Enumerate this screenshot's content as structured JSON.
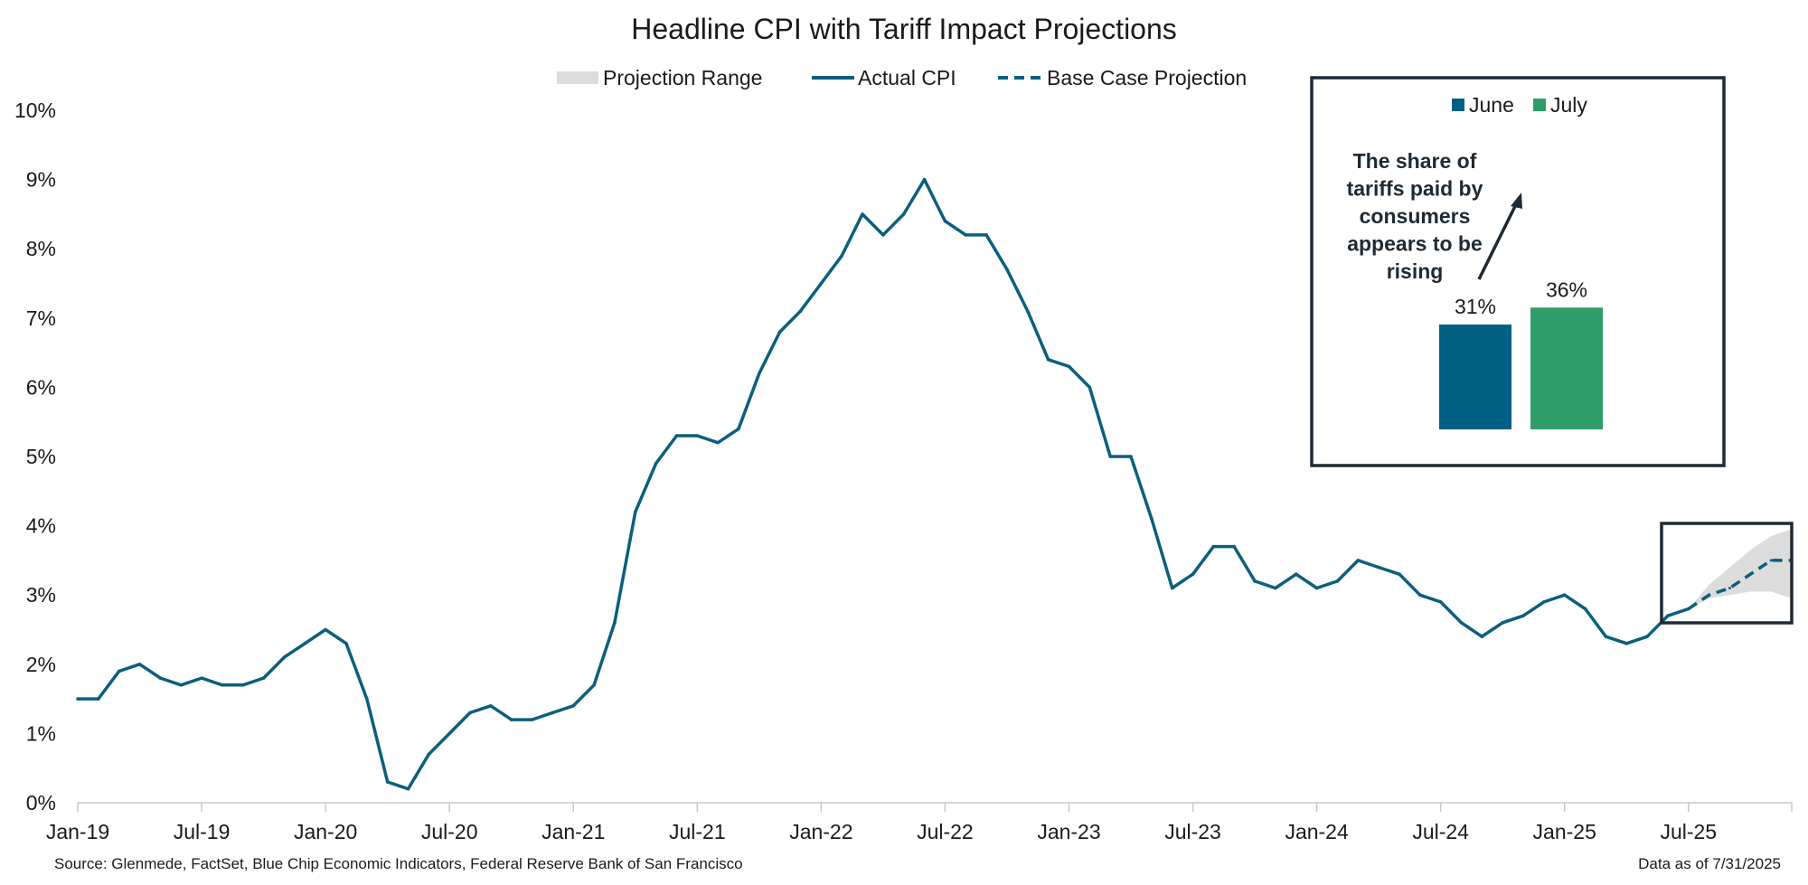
{
  "colors": {
    "actual": "#0B5E7E",
    "june": "#005F83",
    "july": "#2E9D68",
    "band": "#DCDCDC",
    "box": "#1E2A33",
    "axis": "#C8C8C8"
  },
  "footer": {
    "source": "Source: Glenmede, FactSet, Blue Chip Economic Indicators, Federal Reserve Bank of San Francisco",
    "as_of": "Data as of 7/31/2025"
  },
  "chart_data": [
    {
      "type": "line",
      "title": "Headline CPI with Tariff Impact Projections",
      "xlabel": "",
      "ylabel": "",
      "ylim": [
        0,
        10
      ],
      "y_ticks": [
        "0%",
        "1%",
        "2%",
        "3%",
        "4%",
        "5%",
        "6%",
        "7%",
        "8%",
        "9%",
        "10%"
      ],
      "x_ticks": [
        "Jan-19",
        "Jul-19",
        "Jan-20",
        "Jul-20",
        "Jan-21",
        "Jul-21",
        "Jan-22",
        "Jul-22",
        "Jan-23",
        "Jul-23",
        "Jan-24",
        "Jul-24",
        "Jan-25",
        "Jul-25"
      ],
      "x_range": [
        "2019-01",
        "2025-12"
      ],
      "legend": "top-center",
      "grid": false,
      "series": [
        {
          "name": "Actual CPI",
          "style": "solid",
          "x": [
            "2019-01",
            "2019-02",
            "2019-03",
            "2019-04",
            "2019-05",
            "2019-06",
            "2019-07",
            "2019-08",
            "2019-09",
            "2019-10",
            "2019-11",
            "2019-12",
            "2020-01",
            "2020-02",
            "2020-03",
            "2020-04",
            "2020-05",
            "2020-06",
            "2020-07",
            "2020-08",
            "2020-09",
            "2020-10",
            "2020-11",
            "2020-12",
            "2021-01",
            "2021-02",
            "2021-03",
            "2021-04",
            "2021-05",
            "2021-06",
            "2021-07",
            "2021-08",
            "2021-09",
            "2021-10",
            "2021-11",
            "2021-12",
            "2022-01",
            "2022-02",
            "2022-03",
            "2022-04",
            "2022-05",
            "2022-06",
            "2022-07",
            "2022-08",
            "2022-09",
            "2022-10",
            "2022-11",
            "2022-12",
            "2023-01",
            "2023-02",
            "2023-03",
            "2023-04",
            "2023-05",
            "2023-06",
            "2023-07",
            "2023-08",
            "2023-09",
            "2023-10",
            "2023-11",
            "2023-12",
            "2024-01",
            "2024-02",
            "2024-03",
            "2024-04",
            "2024-05",
            "2024-06",
            "2024-07",
            "2024-08",
            "2024-09",
            "2024-10",
            "2024-11",
            "2024-12",
            "2025-01",
            "2025-02",
            "2025-03",
            "2025-04",
            "2025-05",
            "2025-06",
            "2025-07"
          ],
          "values": [
            1.5,
            1.5,
            1.9,
            2.0,
            1.8,
            1.7,
            1.8,
            1.7,
            1.7,
            1.8,
            2.1,
            2.3,
            2.5,
            2.3,
            1.5,
            0.3,
            0.2,
            0.7,
            1.0,
            1.3,
            1.4,
            1.2,
            1.2,
            1.3,
            1.4,
            1.7,
            2.6,
            4.2,
            4.9,
            5.3,
            5.3,
            5.2,
            5.4,
            6.2,
            6.8,
            7.1,
            7.5,
            7.9,
            8.5,
            8.2,
            8.5,
            9.0,
            8.4,
            8.2,
            8.2,
            7.7,
            7.1,
            6.4,
            6.3,
            6.0,
            5.0,
            5.0,
            4.1,
            3.1,
            3.3,
            3.7,
            3.7,
            3.2,
            3.1,
            3.3,
            3.1,
            3.2,
            3.5,
            3.4,
            3.3,
            3.0,
            2.9,
            2.6,
            2.4,
            2.6,
            2.7,
            2.9,
            3.0,
            2.8,
            2.4,
            2.3,
            2.4,
            2.7,
            2.8
          ]
        },
        {
          "name": "Base Case Projection",
          "style": "dashed",
          "x": [
            "2025-07",
            "2025-08",
            "2025-09",
            "2025-10",
            "2025-11",
            "2025-12"
          ],
          "values": [
            2.8,
            3.0,
            3.1,
            3.3,
            3.5,
            3.5
          ]
        },
        {
          "name": "Projection Range",
          "style": "band",
          "x": [
            "2025-07",
            "2025-08",
            "2025-09",
            "2025-10",
            "2025-11",
            "2025-12"
          ],
          "low": [
            2.8,
            2.95,
            3.0,
            3.05,
            3.05,
            2.95
          ],
          "high": [
            2.8,
            3.15,
            3.4,
            3.65,
            3.85,
            3.95
          ]
        }
      ]
    },
    {
      "type": "bar",
      "title": "",
      "categories": [
        "June",
        "July"
      ],
      "values": [
        31,
        36
      ],
      "labels": [
        "31%",
        "36%"
      ],
      "legend": "top-center",
      "annotation": "The share of tariffs paid by consumers appears to be rising"
    }
  ]
}
